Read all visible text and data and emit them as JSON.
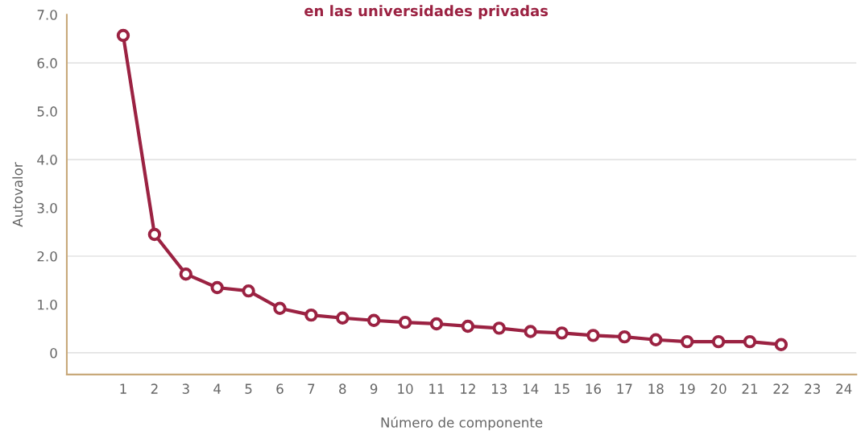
{
  "chart_data": {
    "type": "line",
    "title": "en las universidades privadas",
    "xlabel": "Número de componente",
    "ylabel": "Autovalor",
    "x": [
      1,
      2,
      3,
      4,
      5,
      6,
      7,
      8,
      9,
      10,
      11,
      12,
      13,
      14,
      15,
      16,
      17,
      18,
      19,
      20,
      21,
      22
    ],
    "series": [
      {
        "color": "#9b2242",
        "values": [
          6.57,
          2.45,
          1.63,
          1.35,
          1.28,
          0.92,
          0.78,
          0.72,
          0.67,
          0.63,
          0.6,
          0.55,
          0.51,
          0.44,
          0.41,
          0.36,
          0.33,
          0.27,
          0.23,
          0.23,
          0.23,
          0.17
        ]
      }
    ],
    "xlim": [
      -0.8,
      24.4
    ],
    "xticks": [
      1,
      2,
      3,
      4,
      5,
      6,
      7,
      8,
      9,
      10,
      11,
      12,
      13,
      14,
      15,
      16,
      17,
      18,
      19,
      20,
      21,
      22,
      23,
      24
    ],
    "ylim": [
      -0.45,
      7.0
    ],
    "yticks": [
      {
        "value": 0,
        "label": "0"
      },
      {
        "value": 1,
        "label": "1.0"
      },
      {
        "value": 2,
        "label": "2.0"
      },
      {
        "value": 3,
        "label": "3.0"
      },
      {
        "value": 4,
        "label": "4.0"
      },
      {
        "value": 5,
        "label": "5.0"
      },
      {
        "value": 6,
        "label": "6.0"
      },
      {
        "value": 7,
        "label": "7.0"
      }
    ],
    "grid": "y",
    "marker": "circle",
    "line_style": "solid",
    "legend": false
  }
}
